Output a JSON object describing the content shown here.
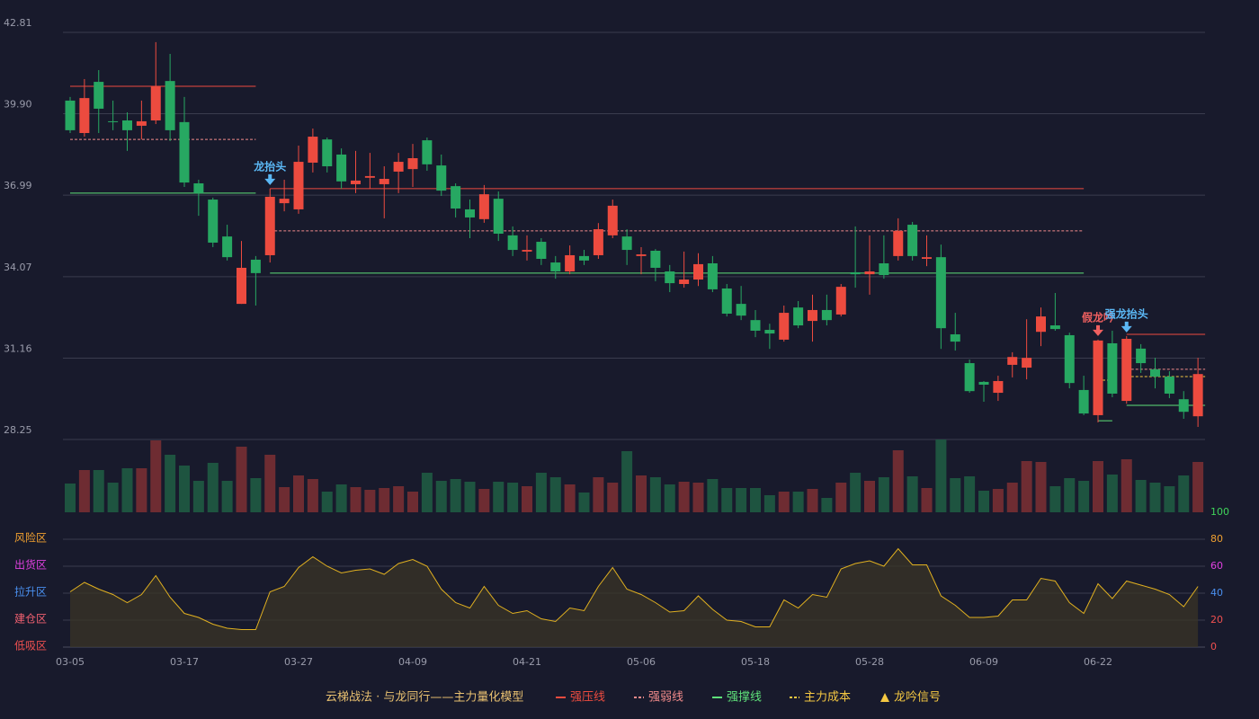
{
  "chart_data": {
    "type": "candlestick",
    "categories": [
      "03-05",
      null,
      null,
      null,
      null,
      null,
      null,
      null,
      "03-17",
      null,
      null,
      null,
      null,
      null,
      null,
      null,
      "03-27",
      null,
      null,
      null,
      null,
      null,
      null,
      null,
      "04-09",
      null,
      null,
      null,
      null,
      null,
      null,
      null,
      "04-21",
      null,
      null,
      null,
      null,
      null,
      null,
      null,
      "05-06",
      null,
      null,
      null,
      null,
      null,
      null,
      null,
      "05-18",
      null,
      null,
      null,
      null,
      null,
      null,
      null,
      "05-28",
      null,
      null,
      null,
      null,
      null,
      null,
      null,
      "06-09",
      null,
      null,
      null,
      null,
      null,
      null,
      null,
      "06-22",
      null,
      null,
      null,
      null,
      null,
      null,
      null
    ],
    "open": [
      40.37,
      39.21,
      41.04,
      39.63,
      39.66,
      39.47,
      39.66,
      41.07,
      39.6,
      37.41,
      36.83,
      35.51,
      33.1,
      34.68,
      34.84,
      36.7,
      36.48,
      38.15,
      38.98,
      38.44,
      37.38,
      37.61,
      37.38,
      37.83,
      37.92,
      38.95,
      38.05,
      37.31,
      36.48,
      36.13,
      36.86,
      35.55,
      34.97,
      35.32,
      34.58,
      34.26,
      34.81,
      34.84,
      35.55,
      35.51,
      34.81,
      35.0,
      34.26,
      33.81,
      33.97,
      34.55,
      33.65,
      33.1,
      32.52,
      32.17,
      31.82,
      32.97,
      32.49,
      32.88,
      32.72,
      34.23,
      34.16,
      34.55,
      34.81,
      35.93,
      34.71,
      34.77,
      32.01,
      30.98,
      30.31,
      29.92,
      30.92,
      30.82,
      32.1,
      32.33,
      31.98,
      30.02,
      29.12,
      31.69,
      29.63,
      31.5,
      30.76,
      30.5,
      29.69,
      29.08
    ],
    "high": [
      40.5,
      41.14,
      41.46,
      40.37,
      39.95,
      40.37,
      42.46,
      42.04,
      40.5,
      37.54,
      36.9,
      35.93,
      35.35,
      34.81,
      37.22,
      37.54,
      38.76,
      39.37,
      39.05,
      38.66,
      38.57,
      38.5,
      38.02,
      38.5,
      38.82,
      39.05,
      38.44,
      37.41,
      36.83,
      37.35,
      37.12,
      35.87,
      35.55,
      35.45,
      34.81,
      35.19,
      35.03,
      35.99,
      36.83,
      35.77,
      35.13,
      35.06,
      34.49,
      34.97,
      34.91,
      34.81,
      33.81,
      33.74,
      32.88,
      32.39,
      33.04,
      33.2,
      33.43,
      33.43,
      33.81,
      35.87,
      35.55,
      35.55,
      36.16,
      36.03,
      35.55,
      35.22,
      32.78,
      31.11,
      30.34,
      30.53,
      31.37,
      32.55,
      32.97,
      33.49,
      32.07,
      30.53,
      31.82,
      32.14,
      31.95,
      31.66,
      31.17,
      30.69,
      29.98,
      31.17
    ],
    "low": [
      39.21,
      39.08,
      39.21,
      39.31,
      38.57,
      38.98,
      39.53,
      38.92,
      37.28,
      36.25,
      35.13,
      34.65,
      33.1,
      33.04,
      34.58,
      36.41,
      36.32,
      37.8,
      37.8,
      37.22,
      37.06,
      37.22,
      36.16,
      37.06,
      37.28,
      37.86,
      36.96,
      36.19,
      35.45,
      36.0,
      35.35,
      34.81,
      34.65,
      34.49,
      34.0,
      34.16,
      34.49,
      34.71,
      35.45,
      34.49,
      34.16,
      33.91,
      33.52,
      33.68,
      33.74,
      33.52,
      32.65,
      32.52,
      31.91,
      31.49,
      31.75,
      32.23,
      31.75,
      32.33,
      32.65,
      33.68,
      33.43,
      34.0,
      34.65,
      34.65,
      34.45,
      31.49,
      31.43,
      29.92,
      29.6,
      29.63,
      30.47,
      30.4,
      31.59,
      32.14,
      30.08,
      29.12,
      28.86,
      29.76,
      29.53,
      30.63,
      30.08,
      29.73,
      28.99,
      28.7
    ],
    "close": [
      39.31,
      40.46,
      40.08,
      39.6,
      39.31,
      39.63,
      40.88,
      39.31,
      37.44,
      37.06,
      35.29,
      34.77,
      34.39,
      34.2,
      36.93,
      36.86,
      38.18,
      39.08,
      38.02,
      37.48,
      37.51,
      37.67,
      37.57,
      38.18,
      38.31,
      38.09,
      37.15,
      36.51,
      36.19,
      37.02,
      35.61,
      35.03,
      35.03,
      34.71,
      34.26,
      34.84,
      34.65,
      35.77,
      36.61,
      35.03,
      34.87,
      34.39,
      33.84,
      33.97,
      34.52,
      33.62,
      32.75,
      32.68,
      32.14,
      32.04,
      32.78,
      32.33,
      32.88,
      32.52,
      33.71,
      34.16,
      34.26,
      34.13,
      35.71,
      34.81,
      34.77,
      32.23,
      31.75,
      29.98,
      30.21,
      30.34,
      31.2,
      31.17,
      32.65,
      32.2,
      30.27,
      29.18,
      31.79,
      29.89,
      31.85,
      30.98,
      30.5,
      29.89,
      29.24,
      30.59
    ],
    "volume": [
      32,
      47,
      47,
      33,
      49,
      49,
      80,
      64,
      52,
      35,
      55,
      35,
      73,
      38,
      64,
      28,
      41,
      37,
      23,
      31,
      28,
      25,
      27,
      29,
      23,
      44,
      35,
      37,
      34,
      26,
      34,
      33,
      29,
      44,
      39,
      31,
      22,
      39,
      33,
      68,
      41,
      39,
      31,
      34,
      33,
      37,
      27,
      27,
      27,
      19,
      23,
      23,
      26,
      16,
      33,
      44,
      35,
      39,
      69,
      40,
      27,
      81,
      38,
      40,
      24,
      26,
      33,
      57,
      56,
      29,
      38,
      35,
      57,
      42,
      59,
      36,
      33,
      29,
      41,
      56
    ],
    "up_color": "#ec4b3f",
    "down_color": "#27a862",
    "volume_up_color": "#6e2c32",
    "volume_down_color": "#1e5440",
    "ylim": [
      28.25,
      42.81
    ],
    "yticks": [
      28.25,
      31.16,
      34.07,
      36.99,
      {
        "value": 39.9,
        "label": "39.90"
      },
      42.81
    ],
    "levels": [
      {
        "name": "强压线",
        "color": "#ec4b3f",
        "dashed": false,
        "segments": [
          {
            "start": 0,
            "end": 13,
            "value": 40.88
          },
          {
            "start": 14,
            "end": 71,
            "value": 37.22
          },
          {
            "start": 74,
            "end": 79,
            "value": 32.01
          }
        ]
      },
      {
        "name": "强弱线",
        "color": "#f08a8a",
        "dashed": true,
        "segments": [
          {
            "start": 0,
            "end": 13,
            "value": 38.98
          },
          {
            "start": 14,
            "end": 71,
            "value": 35.71
          },
          {
            "start": 74,
            "end": 79,
            "value": 30.76
          }
        ]
      },
      {
        "name": "强撑线",
        "color": "#5ee07a",
        "dashed": false,
        "segments": [
          {
            "start": 0,
            "end": 13,
            "value": 37.06
          },
          {
            "start": 14,
            "end": 71,
            "value": 34.2
          },
          {
            "start": 72,
            "end": 73,
            "value": 28.92
          },
          {
            "start": 74,
            "end": 79,
            "value": 29.47
          }
        ]
      },
      {
        "name": "主力成本",
        "color": "#f5c842",
        "dashed": true,
        "segments": [
          {
            "start": 72,
            "end": 73,
            "value": 30.37
          },
          {
            "start": 74,
            "end": 79,
            "value": 30.5
          }
        ]
      }
    ],
    "signals": [
      {
        "label": "龙抬头",
        "index": 14,
        "color": "#5bb8f5"
      },
      {
        "label": "假龙吟",
        "index": 72,
        "color": "#f06060"
      },
      {
        "label": "强龙抬头",
        "index": 74,
        "color": "#5bb8f5"
      }
    ],
    "signal_legend": "龙吟信号",
    "signal_legend_color": "#f5c842",
    "legend_title": "云梯战法 · 与龙同行——主力量化模型",
    "indicator": {
      "values": [
        41,
        48,
        43,
        39,
        33,
        39,
        53,
        37,
        25,
        22,
        17,
        14,
        13,
        13,
        41,
        45,
        59,
        67,
        60,
        55,
        57,
        58,
        54,
        62,
        65,
        60,
        43,
        33,
        29,
        45,
        31,
        25,
        27,
        21,
        19,
        29,
        27,
        45,
        59,
        43,
        39,
        33,
        26,
        27,
        38,
        28,
        20,
        19,
        15,
        15,
        35,
        29,
        39,
        37,
        58,
        62,
        64,
        60,
        73,
        61,
        61,
        38,
        31,
        22,
        22,
        23,
        35,
        35,
        51,
        49,
        33,
        25,
        47,
        36,
        49,
        46,
        43,
        39,
        30,
        45
      ],
      "color": "#e0b020",
      "ylim": [
        0,
        100
      ],
      "yticks": [
        0,
        20,
        40,
        60,
        80,
        100
      ],
      "ytick_colors": [
        "#f05050",
        "#f05050",
        "#4a90f0",
        "#e040e0",
        "#f0a030",
        "#3fd45a"
      ],
      "zones": [
        {
          "label": "风险区",
          "value": 80,
          "color": "#f0a030"
        },
        {
          "label": "出货区",
          "value": 60,
          "color": "#e040e0"
        },
        {
          "label": "拉升区",
          "value": 40,
          "color": "#4a90f0"
        },
        {
          "label": "建仓区",
          "value": 20,
          "color": "#f06070"
        },
        {
          "label": "低吸区",
          "value": 0,
          "color": "#f05050"
        }
      ]
    }
  }
}
